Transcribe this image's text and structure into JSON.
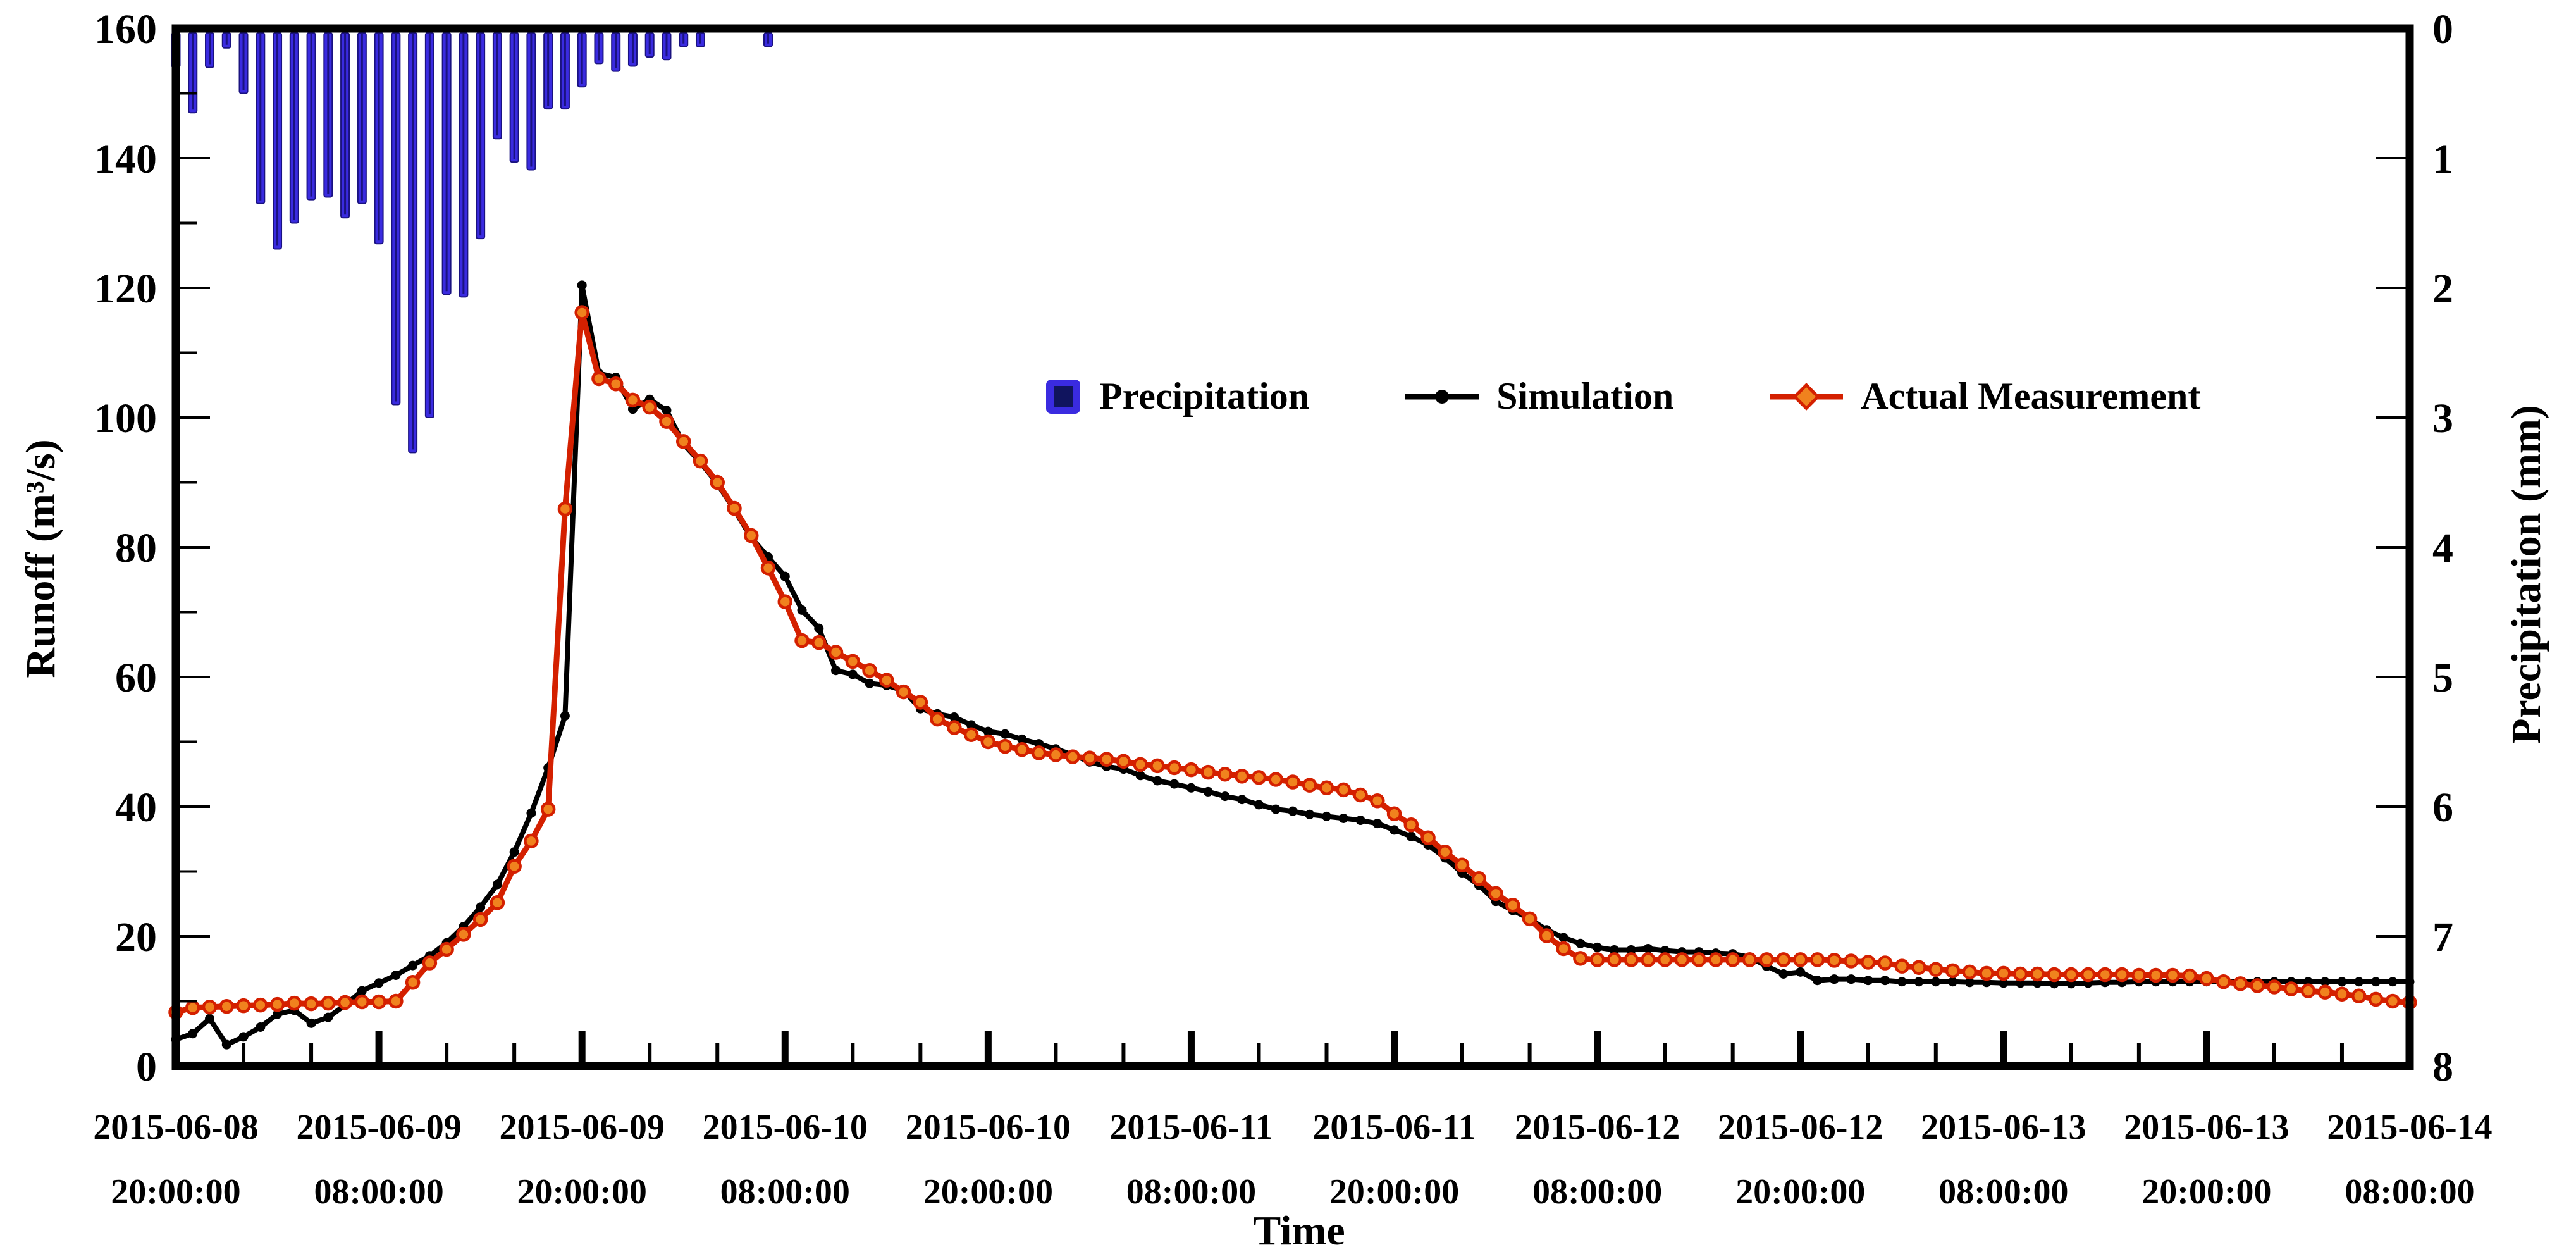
{
  "figure": {
    "background": "#ffffff",
    "frame_color": "#000000"
  },
  "axis_titles": {
    "y_left": "Runoff (m³/s)",
    "y_right": "Precipitation (mm)",
    "x": "Time"
  },
  "legend": {
    "items": [
      {
        "label": "Precipitation",
        "swatch": "blue-bar-square"
      },
      {
        "label": "Simulation",
        "swatch": "black-line-dot"
      },
      {
        "label": "Actual Measurement",
        "swatch": "red-line-diamond"
      }
    ]
  },
  "chart_data": {
    "type": "combo",
    "subtype": [
      "bar",
      "line",
      "line"
    ],
    "title": "",
    "x_axis": {
      "label": "Time",
      "range_hours": [
        0,
        132
      ],
      "major_tick_hours": 12,
      "minor_tick_hours": 4,
      "tick_labels": [
        [
          "2015-06-08",
          "20:00:00"
        ],
        [
          "2015-06-09",
          "08:00:00"
        ],
        [
          "2015-06-09",
          "20:00:00"
        ],
        [
          "2015-06-10",
          "08:00:00"
        ],
        [
          "2015-06-10",
          "20:00:00"
        ],
        [
          "2015-06-11",
          "08:00:00"
        ],
        [
          "2015-06-11",
          "20:00:00"
        ],
        [
          "2015-06-12",
          "08:00:00"
        ],
        [
          "2015-06-12",
          "20:00:00"
        ],
        [
          "2015-06-13",
          "08:00:00"
        ],
        [
          "2015-06-13",
          "20:00:00"
        ],
        [
          "2015-06-14",
          "08:00:00"
        ]
      ]
    },
    "y_left": {
      "label": "Runoff (m³/s)",
      "min": 0,
      "max": 160,
      "tick_step": 20,
      "minor_step": 10,
      "tick_labels": [
        "0",
        "20",
        "40",
        "60",
        "80",
        "100",
        "120",
        "140",
        "160"
      ]
    },
    "y_right": {
      "label": "Precipitation (mm)",
      "min": 0,
      "max": 8,
      "tick_step": 1,
      "inverted": true,
      "tick_labels": [
        "0",
        "1",
        "2",
        "3",
        "4",
        "5",
        "6",
        "7",
        "8"
      ]
    },
    "grid": false,
    "legend_position": "inside-upper-middle",
    "series": [
      {
        "name": "Precipitation",
        "type": "bar",
        "axis": "right",
        "units": "mm",
        "color": "#3a2be0",
        "edge_color": "#1a1280",
        "time_step_hours": 1,
        "values": [
          0.3,
          0.65,
          0.3,
          0.15,
          0.5,
          1.35,
          1.7,
          1.5,
          1.32,
          1.3,
          1.46,
          1.35,
          1.66,
          2.9,
          3.27,
          3.0,
          2.05,
          2.07,
          1.62,
          0.85,
          1.03,
          1.09,
          0.62,
          0.62,
          0.45,
          0.27,
          0.33,
          0.29,
          0.22,
          0.24,
          0.14,
          0.14,
          0,
          0,
          0,
          0.14,
          0,
          0,
          0,
          0,
          0,
          0,
          0,
          0,
          0,
          0,
          0,
          0,
          0,
          0,
          0,
          0,
          0,
          0,
          0,
          0,
          0,
          0,
          0,
          0,
          0,
          0,
          0,
          0,
          0,
          0,
          0,
          0,
          0,
          0,
          0,
          0,
          0,
          0,
          0,
          0,
          0,
          0,
          0,
          0,
          0,
          0,
          0,
          0,
          0,
          0,
          0,
          0,
          0,
          0,
          0,
          0,
          0,
          0,
          0,
          0,
          0,
          0,
          0,
          0,
          0,
          0,
          0,
          0,
          0,
          0,
          0,
          0,
          0,
          0,
          0,
          0,
          0,
          0,
          0,
          0,
          0,
          0,
          0,
          0,
          0,
          0,
          0,
          0,
          0,
          0,
          0,
          0,
          0,
          0,
          0,
          0,
          0,
          0
        ]
      },
      {
        "name": "Simulation",
        "type": "line",
        "axis": "left",
        "units": "m³/s",
        "color": "#000000",
        "marker": "dot",
        "marker_color": "#000000",
        "time_step_hours": 1,
        "values": [
          4.1,
          5.0,
          7.3,
          3.3,
          4.5,
          6.0,
          8.0,
          8.6,
          6.6,
          7.5,
          9.4,
          11.6,
          12.8,
          14.0,
          15.5,
          17.0,
          19.0,
          21.5,
          24.5,
          28.0,
          33.0,
          39.0,
          46.0,
          54.0,
          120.4,
          106.8,
          106.2,
          101.3,
          102.8,
          101.1,
          95.9,
          93.1,
          89.8,
          85.8,
          81.5,
          78.5,
          75.5,
          70.3,
          67.5,
          61.0,
          60.4,
          59.0,
          58.7,
          57.9,
          55.1,
          54.3,
          53.8,
          52.6,
          51.6,
          51.2,
          50.4,
          49.7,
          48.9,
          48.0,
          46.9,
          46.2,
          45.8,
          44.8,
          44.0,
          43.5,
          42.9,
          42.3,
          41.6,
          41.1,
          40.3,
          39.6,
          39.3,
          38.8,
          38.5,
          38.2,
          37.9,
          37.4,
          36.4,
          35.4,
          34.1,
          32.1,
          29.8,
          27.9,
          25.4,
          24.0,
          22.7,
          21.0,
          19.8,
          18.9,
          18.3,
          17.9,
          17.9,
          18.1,
          17.8,
          17.6,
          17.6,
          17.4,
          17.3,
          16.8,
          15.4,
          14.2,
          14.5,
          13.2,
          13.4,
          13.4,
          13.2,
          13.2,
          13.0,
          13.0,
          13.0,
          13.0,
          12.9,
          12.9,
          12.8,
          12.8,
          12.8,
          12.7,
          12.7,
          12.8,
          12.9,
          12.9,
          13.0,
          13.0,
          13.0,
          13.0,
          13.0,
          13.0,
          13.0,
          13.0,
          13.0,
          13.0,
          13.0,
          13.0,
          13.0,
          13.0,
          13.0,
          13.0,
          13.0
        ]
      },
      {
        "name": "Actual Measurement",
        "type": "line",
        "axis": "left",
        "units": "m³/s",
        "color": "#d42000",
        "marker": "circle",
        "marker_color": "#f0821e",
        "marker_edge_color": "#d42000",
        "time_step_hours": 1,
        "values": [
          8.3,
          9.0,
          9.1,
          9.2,
          9.3,
          9.4,
          9.5,
          9.7,
          9.6,
          9.7,
          9.8,
          9.9,
          9.9,
          10.0,
          12.9,
          15.9,
          18.0,
          20.3,
          22.6,
          25.2,
          30.8,
          34.7,
          39.6,
          85.9,
          116.2,
          106.0,
          105.2,
          102.7,
          101.6,
          99.4,
          96.3,
          93.3,
          90.0,
          86.0,
          81.8,
          76.8,
          71.6,
          65.6,
          65.3,
          63.8,
          62.4,
          61.0,
          59.5,
          57.7,
          56.1,
          53.5,
          52.2,
          51.1,
          50.0,
          49.3,
          48.8,
          48.3,
          48.0,
          47.7,
          47.5,
          47.3,
          47.0,
          46.5,
          46.3,
          46.0,
          45.7,
          45.3,
          45.0,
          44.7,
          44.5,
          44.2,
          43.8,
          43.3,
          42.9,
          42.6,
          41.8,
          40.9,
          38.9,
          37.2,
          35.2,
          33.0,
          31.0,
          28.9,
          26.6,
          24.8,
          22.7,
          20.1,
          18.1,
          16.6,
          16.4,
          16.4,
          16.4,
          16.4,
          16.4,
          16.4,
          16.4,
          16.4,
          16.4,
          16.4,
          16.4,
          16.4,
          16.4,
          16.4,
          16.3,
          16.2,
          16.0,
          15.9,
          15.4,
          15.2,
          14.9,
          14.7,
          14.5,
          14.3,
          14.3,
          14.2,
          14.2,
          14.1,
          14.1,
          14.1,
          14.1,
          14.1,
          14.0,
          14.0,
          14.0,
          13.9,
          13.5,
          13.0,
          12.7,
          12.4,
          12.2,
          11.9,
          11.6,
          11.4,
          11.1,
          10.8,
          10.3,
          10.0,
          9.8
        ]
      }
    ]
  }
}
